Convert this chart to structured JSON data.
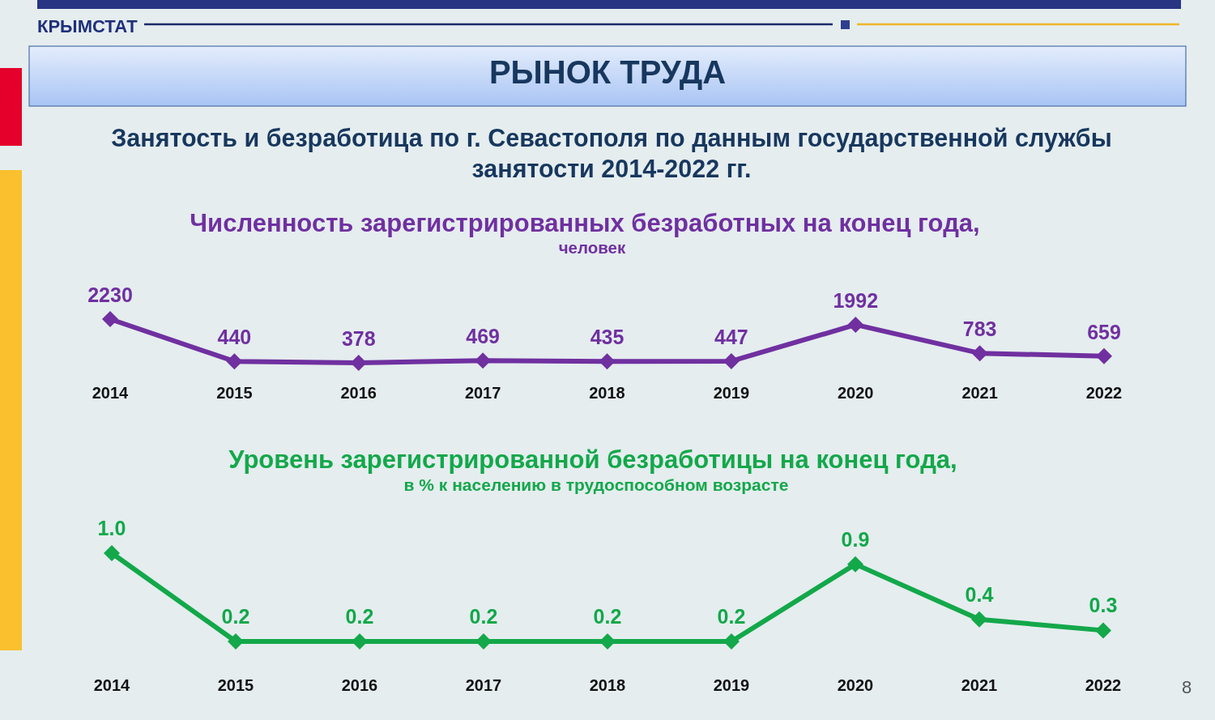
{
  "chart_data": [
    {
      "type": "other",
      "title": "РЫНОК ТРУДА",
      "subtitle": "Занятость и безработица по г. Севастополя по данным государственной службы занятости 2014-2022 гг.",
      "annotations": [
        "КРЫМСТАТ",
        "8"
      ]
    },
    {
      "type": "line",
      "title": "Численность зарегистрированных безработных на конец года,",
      "subtitle": "человек",
      "categories": [
        "2014",
        "2015",
        "2016",
        "2017",
        "2018",
        "2019",
        "2020",
        "2021",
        "2022"
      ],
      "series": [
        {
          "color": "#7030a0",
          "values": [
            2230,
            440,
            378,
            469,
            435,
            447,
            1992,
            783,
            659
          ]
        }
      ],
      "data_labels": true,
      "marker": "diamond",
      "line_style": "solid"
    },
    {
      "type": "line",
      "title": "Уровень зарегистрированной безработицы на конец года,",
      "subtitle": "в % к населению в трудоспособном возрасте",
      "categories": [
        "2014",
        "2015",
        "2016",
        "2017",
        "2018",
        "2019",
        "2020",
        "2021",
        "2022"
      ],
      "series": [
        {
          "color": "#13a84a",
          "values": [
            1.0,
            0.2,
            0.2,
            0.2,
            0.2,
            0.2,
            0.9,
            0.4,
            0.3
          ],
          "value_labels": [
            "1.0",
            "0.2",
            "0.2",
            "0.2",
            "0.2",
            "0.2",
            "0.9",
            "0.4",
            "0.3"
          ]
        }
      ],
      "marker": "diamond",
      "line_style": "solid"
    }
  ]
}
